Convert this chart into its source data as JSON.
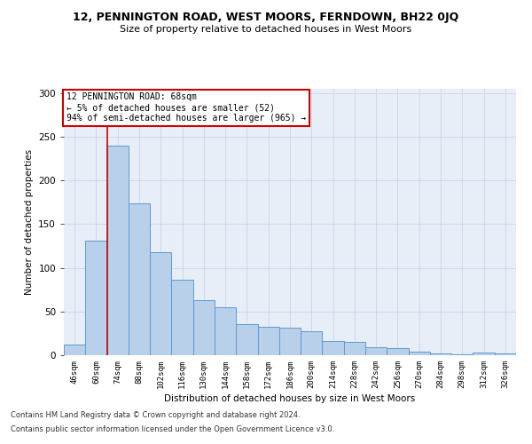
{
  "title1": "12, PENNINGTON ROAD, WEST MOORS, FERNDOWN, BH22 0JQ",
  "title2": "Size of property relative to detached houses in West Moors",
  "xlabel": "Distribution of detached houses by size in West Moors",
  "ylabel": "Number of detached properties",
  "bar_color": "#b8d0ea",
  "bar_edge_color": "#5b9bd5",
  "background_color": "#e8eef8",
  "categories": [
    "46sqm",
    "60sqm",
    "74sqm",
    "88sqm",
    "102sqm",
    "116sqm",
    "130sqm",
    "144sqm",
    "158sqm",
    "172sqm",
    "186sqm",
    "200sqm",
    "214sqm",
    "228sqm",
    "242sqm",
    "256sqm",
    "270sqm",
    "284sqm",
    "298sqm",
    "312sqm",
    "326sqm"
  ],
  "values": [
    12,
    131,
    240,
    174,
    118,
    86,
    63,
    55,
    36,
    33,
    32,
    27,
    16,
    15,
    9,
    8,
    4,
    2,
    1,
    3,
    2
  ],
  "ylim": [
    0,
    305
  ],
  "yticks": [
    0,
    50,
    100,
    150,
    200,
    250,
    300
  ],
  "annotation_text": "12 PENNINGTON ROAD: 68sqm\n← 5% of detached houses are smaller (52)\n94% of semi-detached houses are larger (965) →",
  "vline_x": 1.5,
  "annotation_box_color": "#ffffff",
  "annotation_border_color": "#cc0000",
  "footer_line1": "Contains HM Land Registry data © Crown copyright and database right 2024.",
  "footer_line2": "Contains public sector information licensed under the Open Government Licence v3.0.",
  "vline_color": "#cc0000",
  "grid_color": "#c8d4e8"
}
